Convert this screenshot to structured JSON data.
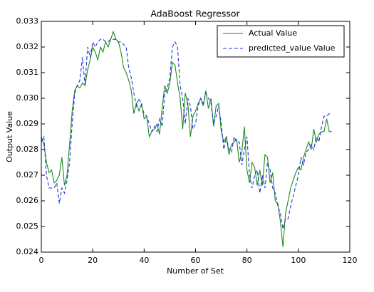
{
  "chart_data": {
    "type": "line",
    "title": "AdaBoost Regressor",
    "x_label": "Number of Set",
    "y_label": "Output Value",
    "xlim": [
      0,
      120
    ],
    "xticks": [
      0,
      20,
      40,
      60,
      80,
      100,
      120
    ],
    "ylim": [
      0.024,
      0.033
    ],
    "yticks": [
      0.024,
      0.025,
      0.026,
      0.027,
      0.028,
      0.029,
      {
        "value": 0.03,
        "label": "0.030"
      },
      0.031,
      0.032,
      0.033
    ],
    "grid": false,
    "legend_position": "upper right",
    "x": [
      0,
      1,
      2,
      3,
      4,
      5,
      6,
      7,
      8,
      9,
      10,
      11,
      12,
      13,
      14,
      15,
      16,
      17,
      18,
      19,
      20,
      21,
      22,
      23,
      24,
      25,
      26,
      27,
      28,
      29,
      30,
      31,
      32,
      33,
      34,
      35,
      36,
      37,
      38,
      39,
      40,
      41,
      42,
      43,
      44,
      45,
      46,
      47,
      48,
      49,
      50,
      51,
      52,
      53,
      54,
      55,
      56,
      57,
      58,
      59,
      60,
      61,
      62,
      63,
      64,
      65,
      66,
      67,
      68,
      69,
      70,
      71,
      72,
      73,
      74,
      75,
      76,
      77,
      78,
      79,
      80,
      81,
      82,
      83,
      84,
      85,
      86,
      87,
      88,
      89,
      90,
      91,
      92,
      93,
      94,
      95,
      96,
      97,
      98,
      99,
      100,
      101,
      102,
      103,
      104,
      105,
      106,
      107,
      108,
      109,
      110,
      111,
      112,
      113
    ],
    "series": [
      {
        "name": "Actual Value",
        "color": "#1a8a1a",
        "linestyle": "solid",
        "values": [
          0.0285,
          0.0282,
          0.0275,
          0.0271,
          0.0272,
          0.0267,
          0.0268,
          0.027,
          0.0277,
          0.0266,
          0.027,
          0.0282,
          0.0295,
          0.0303,
          0.0305,
          0.0304,
          0.0306,
          0.0305,
          0.0311,
          0.0315,
          0.032,
          0.0318,
          0.0315,
          0.032,
          0.0318,
          0.0322,
          0.032,
          0.0323,
          0.0326,
          0.0323,
          0.0322,
          0.0318,
          0.0312,
          0.031,
          0.0307,
          0.0303,
          0.0294,
          0.0298,
          0.0295,
          0.0298,
          0.0292,
          0.0293,
          0.0285,
          0.0287,
          0.0288,
          0.029,
          0.0286,
          0.0296,
          0.0305,
          0.0302,
          0.0306,
          0.0314,
          0.0313,
          0.0306,
          0.03,
          0.0288,
          0.0302,
          0.0298,
          0.0285,
          0.0293,
          0.0295,
          0.0298,
          0.03,
          0.0297,
          0.0303,
          0.0296,
          0.03,
          0.0289,
          0.0297,
          0.0298,
          0.0287,
          0.0283,
          0.0285,
          0.0278,
          0.0282,
          0.0283,
          0.0284,
          0.0275,
          0.0279,
          0.0289,
          0.0272,
          0.0267,
          0.0275,
          0.0273,
          0.0266,
          0.0272,
          0.0266,
          0.0278,
          0.0277,
          0.0267,
          0.0271,
          0.026,
          0.0259,
          0.0252,
          0.0242,
          0.0255,
          0.026,
          0.0265,
          0.0268,
          0.0271,
          0.0273,
          0.0272,
          0.0277,
          0.028,
          0.0283,
          0.028,
          0.0288,
          0.0283,
          0.0286,
          0.0287,
          0.0287,
          0.0292,
          0.0287,
          0.0287
        ]
      },
      {
        "name": "predicted_value Value",
        "color": "#2233dd",
        "linestyle": "dashed",
        "values": [
          0.0283,
          0.0285,
          0.027,
          0.0265,
          0.0265,
          0.0265,
          0.0267,
          0.0259,
          0.0265,
          0.0263,
          0.0268,
          0.0275,
          0.029,
          0.0302,
          0.0305,
          0.0307,
          0.0316,
          0.0305,
          0.032,
          0.0316,
          0.0322,
          0.032,
          0.0322,
          0.0323,
          0.0323,
          0.0322,
          0.0322,
          0.0323,
          0.0323,
          0.0323,
          0.0322,
          0.0322,
          0.0321,
          0.032,
          0.0312,
          0.0308,
          0.0302,
          0.0297,
          0.03,
          0.0297,
          0.0294,
          0.0293,
          0.029,
          0.0287,
          0.0289,
          0.0287,
          0.0292,
          0.0289,
          0.0302,
          0.0304,
          0.0308,
          0.032,
          0.0322,
          0.032,
          0.0305,
          0.03,
          0.029,
          0.03,
          0.0297,
          0.0288,
          0.029,
          0.0297,
          0.03,
          0.0298,
          0.0302,
          0.03,
          0.0298,
          0.029,
          0.0293,
          0.0297,
          0.029,
          0.028,
          0.0285,
          0.028,
          0.0279,
          0.0285,
          0.0283,
          0.0283,
          0.0274,
          0.028,
          0.0285,
          0.027,
          0.0265,
          0.027,
          0.0272,
          0.0263,
          0.027,
          0.0265,
          0.0275,
          0.0272,
          0.0265,
          0.0263,
          0.0258,
          0.0255,
          0.0249,
          0.0253,
          0.0253,
          0.0258,
          0.0262,
          0.0266,
          0.027,
          0.0277,
          0.0274,
          0.0279,
          0.028,
          0.0282,
          0.028,
          0.0285,
          0.0283,
          0.0289,
          0.0293,
          0.0293,
          0.0294,
          0.0294
        ]
      }
    ]
  }
}
